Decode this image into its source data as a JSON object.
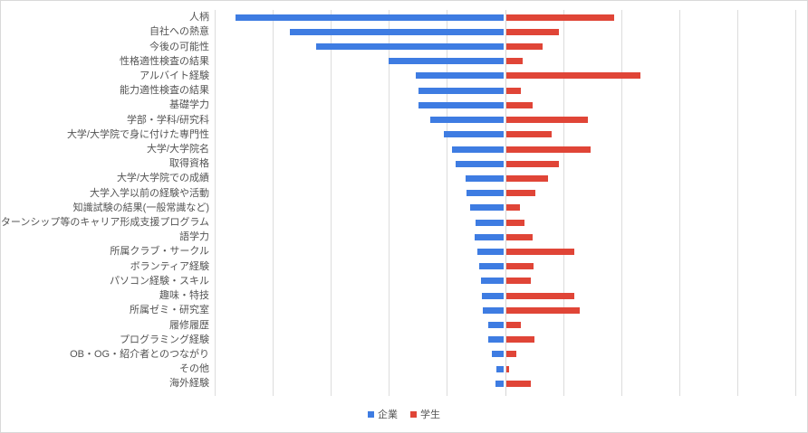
{
  "chart_data": {
    "type": "bar",
    "variant": "diverging-horizontal-tornado",
    "title": "",
    "xlabel": "",
    "ylabel": "",
    "axis": {
      "min": -100,
      "max": 100,
      "gridline_step": 20,
      "tick_labels_shown": false,
      "grid": true
    },
    "legend_position": "bottom-center",
    "categories": [
      "人柄",
      "自社への熱意",
      "今後の可能性",
      "性格適性検査の結果",
      "アルバイト経験",
      "能力適性検査の結果",
      "基礎学力",
      "学部・学科/研究科",
      "大学/大学院で身に付けた専門性",
      "大学/大学院名",
      "取得資格",
      "大学/大学院での成績",
      "大学入学以前の経験や活動",
      "知識試験の結果(一般常識など)",
      "インターンシップ等のキャリア形成支援プログラム",
      "語学力",
      "所属クラブ・サークル",
      "ボランティア経験",
      "パソコン経験・スキル",
      "趣味・特技",
      "所属ゼミ・研究室",
      "履修履歴",
      "プログラミング経験",
      "OB・OG・紹介者とのつながり",
      "その他",
      "海外経験"
    ],
    "series": [
      {
        "name": "企業",
        "color": "#3e7ce2",
        "direction": "left",
        "values": [
          92.5,
          73.6,
          64.5,
          39.6,
          30.2,
          29.4,
          29.4,
          25.4,
          20.7,
          17.8,
          16.6,
          13.0,
          12.7,
          11.7,
          9.6,
          10.0,
          8.9,
          8.4,
          7.7,
          7.4,
          7.1,
          5.4,
          5.2,
          4.2,
          2.4,
          2.7
        ]
      },
      {
        "name": "学生",
        "color": "#e04537",
        "direction": "right",
        "values": [
          37.2,
          18.2,
          12.6,
          5.6,
          46.3,
          5.1,
          9.1,
          28.1,
          15.6,
          28.9,
          18.2,
          14.3,
          10.0,
          4.8,
          6.2,
          9.1,
          23.5,
          9.5,
          8.5,
          23.3,
          25.2,
          5.1,
          9.8,
          3.3,
          0.9,
          8.5
        ]
      }
    ],
    "colors": {
      "gridline": "#dcdcdc",
      "label_text": "#545454",
      "canvas_border": "#d9d9d9",
      "background": "#ffffff"
    }
  }
}
